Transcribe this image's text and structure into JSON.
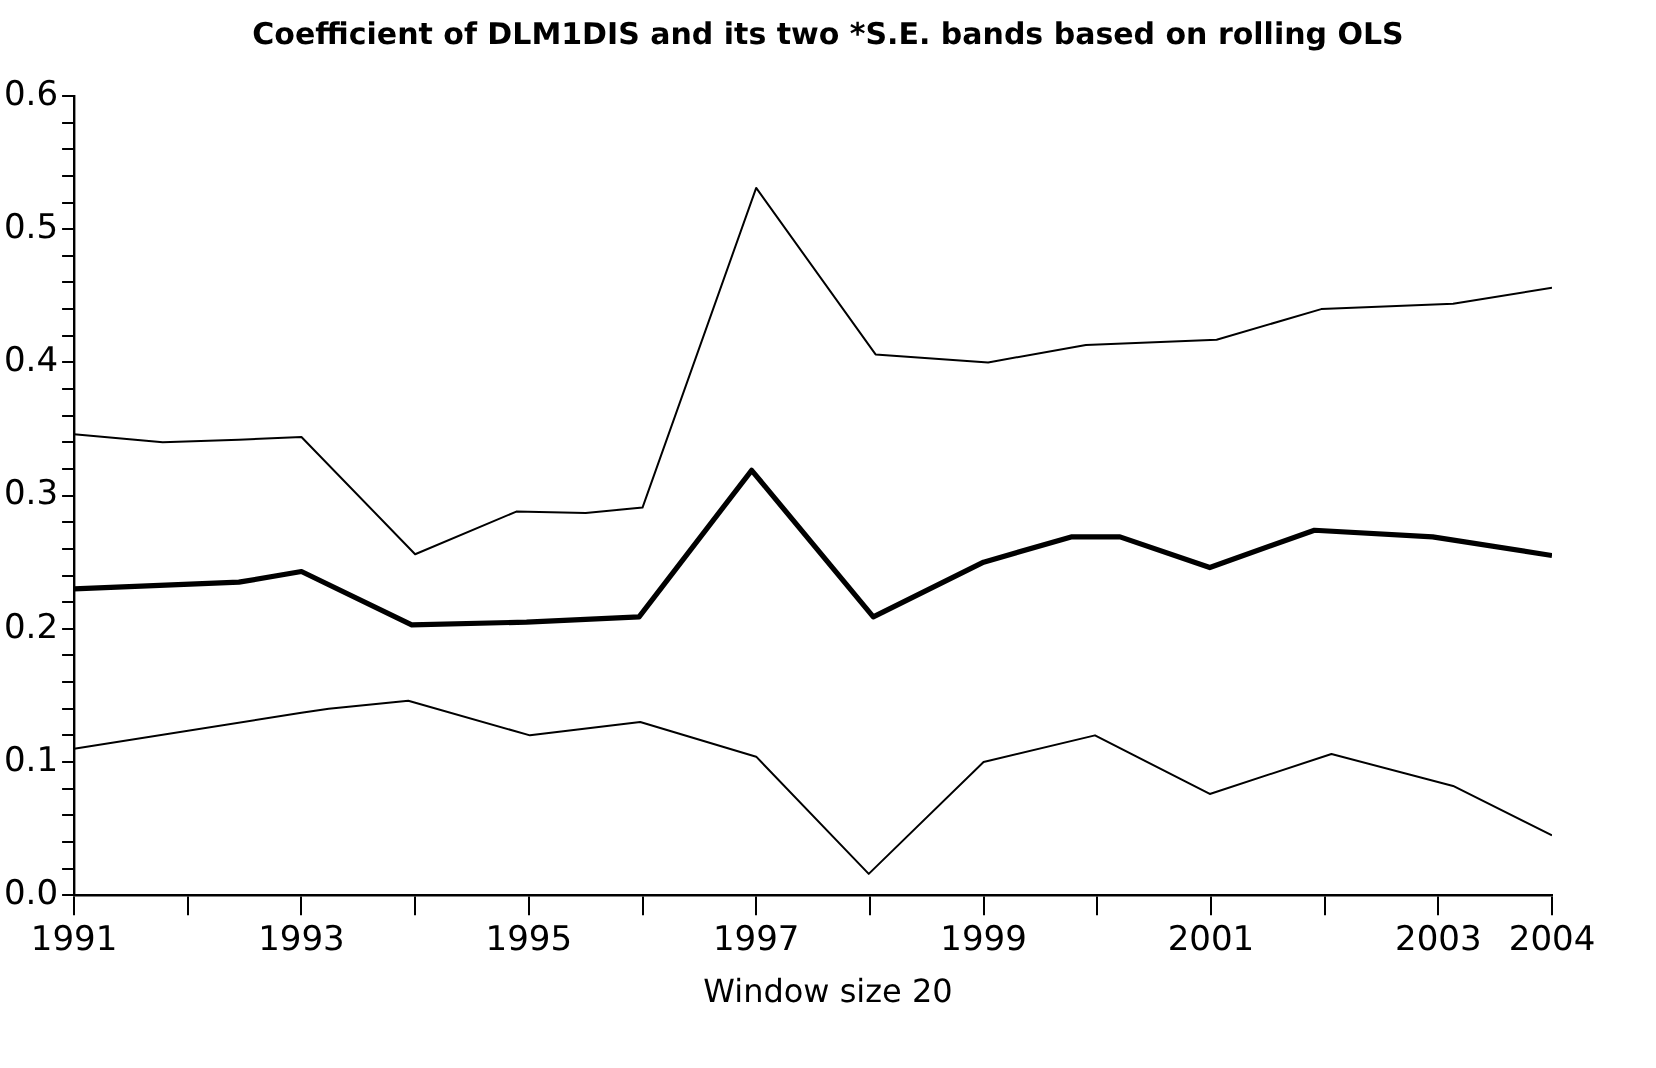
{
  "chart_data": {
    "type": "line",
    "title": "Coefficient of DLM1DIS and its two *S.E. bands based on rolling OLS",
    "xlabel": "Window size 20",
    "xlim": [
      1991,
      2004
    ],
    "xticks": [
      1991,
      {
        "value": 1992,
        "label": null
      },
      1993,
      {
        "value": 1994,
        "label": null
      },
      1995,
      {
        "value": 1996,
        "label": null
      },
      1997,
      {
        "value": 1998,
        "label": null
      },
      1999,
      {
        "value": 2000,
        "label": null
      },
      2001,
      {
        "value": 2002,
        "label": null
      },
      2003,
      2004
    ],
    "ylim": [
      0,
      0.6
    ],
    "yticks": [
      {
        "value": 0,
        "label": "0.0"
      },
      {
        "value": 0.02,
        "label": null
      },
      {
        "value": 0.04,
        "label": null
      },
      {
        "value": 0.06,
        "label": null
      },
      {
        "value": 0.08,
        "label": null
      },
      0.1,
      {
        "value": 0.12,
        "label": null
      },
      {
        "value": 0.14,
        "label": null
      },
      {
        "value": 0.16,
        "label": null
      },
      {
        "value": 0.18,
        "label": null
      },
      0.2,
      {
        "value": 0.22,
        "label": null
      },
      {
        "value": 0.24,
        "label": null
      },
      {
        "value": 0.26,
        "label": null
      },
      {
        "value": 0.28,
        "label": null
      },
      0.3,
      {
        "value": 0.32,
        "label": null
      },
      {
        "value": 0.34,
        "label": null
      },
      {
        "value": 0.36,
        "label": null
      },
      {
        "value": 0.38,
        "label": null
      },
      0.4,
      {
        "value": 0.42,
        "label": null
      },
      {
        "value": 0.44,
        "label": null
      },
      {
        "value": 0.46,
        "label": null
      },
      {
        "value": 0.48,
        "label": null
      },
      0.5,
      {
        "value": 0.52,
        "label": null
      },
      {
        "value": 0.54,
        "label": null
      },
      {
        "value": 0.56,
        "label": null
      },
      {
        "value": 0.58,
        "label": null
      },
      0.6
    ],
    "grid": false,
    "legend": false,
    "marker": "none",
    "line_style": "solid",
    "series": [
      {
        "color": "#000000",
        "x": [
          1991,
          1991.78,
          1992.45,
          1993,
          1994,
          1994.89,
          1995.5,
          1996,
          1997,
          1998.05,
          1999.04,
          1999.9,
          2001.05,
          2001.97,
          2003.13,
          2004
        ],
        "values": [
          0.346,
          0.34,
          0.342,
          0.344,
          0.256,
          0.288,
          0.287,
          0.291,
          0.531,
          0.406,
          0.4,
          0.413,
          0.417,
          0.44,
          0.444,
          0.456
        ]
      },
      {
        "color": "#000000",
        "x": [
          1991,
          1992.45,
          1993,
          1993.97,
          1994.98,
          1995.97,
          1996.96,
          1998.03,
          1999,
          1999.77,
          2000.2,
          2000.99,
          2001.91,
          2002.95,
          2004
        ],
        "values": [
          0.23,
          0.235,
          0.243,
          0.203,
          0.205,
          0.209,
          0.319,
          0.209,
          0.25,
          0.269,
          0.269,
          0.246,
          0.274,
          0.269,
          0.255
        ]
      },
      {
        "color": "#000000",
        "x": [
          1991,
          1993,
          1993.24,
          1993.94,
          1995.01,
          1995.98,
          1997,
          1997.99,
          1999,
          1999.98,
          2000.99,
          2002.06,
          2003.13,
          2004
        ],
        "values": [
          0.11,
          0.137,
          0.14,
          0.146,
          0.12,
          0.13,
          0.104,
          0.016,
          0.1,
          0.12,
          0.076,
          0.106,
          0.082,
          0.045
        ]
      }
    ]
  }
}
